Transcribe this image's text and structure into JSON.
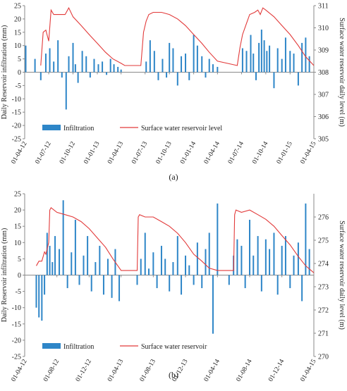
{
  "chart_data": [
    {
      "panel_label": "(a)",
      "type": "bar",
      "ylabel": "Daily Reservoir infiltration (mm)",
      "y2label": "Surface water reservoir daily level (m)",
      "ylim": [
        -25,
        25
      ],
      "y_ticks": [
        "25",
        "20",
        "15",
        "10",
        "5",
        "0",
        "-5",
        "-10",
        "-15",
        "-20",
        "-25"
      ],
      "y2lim": [
        305,
        311
      ],
      "y2_ticks": [
        "311",
        "310",
        "309",
        "308",
        "307",
        "306",
        "305"
      ],
      "x_start": "2012-04-01",
      "x_end": "2015-04-01",
      "x_ticks": [
        {
          "date": "2012-04-01",
          "label": "01-04-12"
        },
        {
          "date": "2012-07-01",
          "label": "01-07-12"
        },
        {
          "date": "2012-10-01",
          "label": "01-10-12"
        },
        {
          "date": "2013-01-01",
          "label": "01-01-13"
        },
        {
          "date": "2013-04-01",
          "label": "01-04-13"
        },
        {
          "date": "2013-07-01",
          "label": "01-07-13"
        },
        {
          "date": "2013-10-01",
          "label": "01-10-13"
        },
        {
          "date": "2014-01-01",
          "label": "01-01-14"
        },
        {
          "date": "2014-04-01",
          "label": "01-04-14"
        },
        {
          "date": "2014-07-01",
          "label": "01-07-14"
        },
        {
          "date": "2014-10-01",
          "label": "01-10-14"
        },
        {
          "date": "2015-01-01",
          "label": "01-01-15"
        },
        {
          "date": "2015-04-01",
          "label": "01-04-15"
        }
      ],
      "legend": [
        "Infiltration",
        "Surface water reservoir level"
      ],
      "legend_position": "bottom-left",
      "grid": false,
      "colors": {
        "bars": "#2e86c8",
        "line": "#e23a3a",
        "axis": "#8a8a8a"
      },
      "series": [
        {
          "type": "bar",
          "axis": "left",
          "x": [
            "2012-04-05",
            "2012-05-10",
            "2012-06-01",
            "2012-06-20",
            "2012-07-05",
            "2012-07-20",
            "2012-08-05",
            "2012-08-20",
            "2012-09-05",
            "2012-09-15",
            "2012-10-01",
            "2012-10-10",
            "2012-10-20",
            "2012-11-05",
            "2012-11-20",
            "2012-12-05",
            "2012-12-20",
            "2013-01-05",
            "2013-01-20",
            "2013-02-05",
            "2013-02-20",
            "2013-03-05",
            "2013-03-20",
            "2013-04-01",
            "2013-07-05",
            "2013-07-20",
            "2013-08-05",
            "2013-08-20",
            "2013-09-05",
            "2013-09-20",
            "2013-10-01",
            "2013-10-15",
            "2013-11-01",
            "2013-11-15",
            "2013-12-01",
            "2013-12-15",
            "2014-01-01",
            "2014-01-15",
            "2014-02-01",
            "2014-02-15",
            "2014-03-01",
            "2014-03-15",
            "2014-04-01",
            "2014-07-05",
            "2014-07-20",
            "2014-08-05",
            "2014-08-15",
            "2014-08-25",
            "2014-09-05",
            "2014-09-15",
            "2014-09-25",
            "2014-10-05",
            "2014-10-15",
            "2014-11-01",
            "2014-11-15",
            "2014-12-01",
            "2014-12-15",
            "2015-01-01",
            "2015-01-15",
            "2015-02-01",
            "2015-02-15",
            "2015-03-01",
            "2015-03-15"
          ],
          "values": [
            10,
            5,
            -3,
            7,
            9,
            4,
            12,
            -2,
            -14,
            6,
            11,
            3,
            -4,
            8,
            6,
            -2,
            5,
            3,
            4,
            -1,
            5,
            3,
            2,
            1,
            4,
            12,
            8,
            -3,
            5,
            -2,
            11,
            9,
            -5,
            6,
            7,
            -3,
            14,
            10,
            6,
            -2,
            5,
            3,
            2,
            9,
            8,
            14,
            7,
            -3,
            11,
            16,
            12,
            8,
            10,
            -6,
            9,
            5,
            13,
            8,
            7,
            -5,
            11,
            13,
            6
          ]
        },
        {
          "type": "line",
          "axis": "right",
          "name": "Surface water reservoir level",
          "x": [
            "2012-06-01",
            "2012-06-10",
            "2012-06-20",
            "2012-07-01",
            "2012-07-10",
            "2012-07-20",
            "2012-08-01",
            "2012-08-15",
            "2012-09-01",
            "2012-09-15",
            "2012-10-01",
            "2012-11-01",
            "2012-12-01",
            "2013-01-01",
            "2013-02-01",
            "2013-03-01",
            "2013-04-01",
            "2013-04-15",
            "2013-06-15",
            "2013-06-25",
            "2013-07-05",
            "2013-07-15",
            "2013-08-01",
            "2013-09-01",
            "2013-10-01",
            "2013-11-01",
            "2013-12-01",
            "2014-01-01",
            "2014-02-01",
            "2014-03-01",
            "2014-04-01",
            "2014-06-15",
            "2014-06-25",
            "2014-07-05",
            "2014-07-20",
            "2014-08-01",
            "2014-08-20",
            "2014-09-01",
            "2014-09-10",
            "2014-09-20",
            "2014-10-01",
            "2014-11-01",
            "2014-12-01",
            "2015-01-01",
            "2015-02-01",
            "2015-03-01",
            "2015-04-01"
          ],
          "values": [
            308.3,
            309.8,
            309.9,
            309.4,
            310.8,
            310.6,
            310.6,
            310.6,
            310.6,
            310.9,
            310.5,
            310.1,
            309.7,
            309.3,
            308.9,
            308.6,
            308.4,
            308.3,
            308.3,
            309.8,
            310.3,
            310.6,
            310.7,
            310.7,
            310.6,
            310.4,
            310.1,
            309.7,
            309.3,
            308.9,
            308.5,
            308.3,
            309.1,
            309.7,
            310.2,
            310.6,
            310.7,
            310.8,
            310.6,
            310.9,
            310.8,
            310.5,
            310.1,
            309.7,
            309.2,
            308.7,
            308.3
          ]
        }
      ]
    },
    {
      "panel_label": "(b)",
      "type": "bar",
      "ylabel": "Daily Reservoir infiltration (mm)",
      "y2label": "Surface water reservoir daily level (m)",
      "ylim": [
        -25,
        25
      ],
      "y_ticks": [
        "25",
        "20",
        "15",
        "10",
        "5",
        "0",
        "-5",
        "-10",
        "-15",
        "-20",
        "-25"
      ],
      "y2lim": [
        270,
        277
      ],
      "y2_ticks": [
        "276",
        "275",
        "274",
        "273",
        "272",
        "271",
        "270"
      ],
      "x_start": "2012-04-01",
      "x_end": "2015-04-01",
      "x_ticks": [
        {
          "date": "2012-04-01",
          "label": "01-04-12"
        },
        {
          "date": "2012-08-01",
          "label": "01-08-12"
        },
        {
          "date": "2012-12-01",
          "label": "01-12-12"
        },
        {
          "date": "2013-04-01",
          "label": "01-04-13"
        },
        {
          "date": "2013-08-01",
          "label": "01-08-13"
        },
        {
          "date": "2013-12-01",
          "label": "01-12-13"
        },
        {
          "date": "2014-04-01",
          "label": "01-04-14"
        },
        {
          "date": "2014-08-01",
          "label": "01-08-14"
        },
        {
          "date": "2014-12-01",
          "label": "01-12-14"
        },
        {
          "date": "2015-04-01",
          "label": "01-04-15"
        }
      ],
      "legend": [
        "Infiltration",
        "Surface water reservoir"
      ],
      "legend_position": "bottom-left",
      "grid": false,
      "colors": {
        "bars": "#2e86c8",
        "line": "#e23a3a",
        "axis": "#8a8a8a"
      },
      "series": [
        {
          "type": "bar",
          "axis": "left",
          "x": [
            "2012-05-15",
            "2012-05-25",
            "2012-06-05",
            "2012-06-15",
            "2012-06-25",
            "2012-07-05",
            "2012-07-15",
            "2012-07-25",
            "2012-08-10",
            "2012-08-25",
            "2012-09-10",
            "2012-09-25",
            "2012-10-10",
            "2012-10-25",
            "2012-11-10",
            "2012-11-25",
            "2012-12-10",
            "2012-12-25",
            "2013-01-10",
            "2013-01-25",
            "2013-02-10",
            "2013-02-25",
            "2013-03-10",
            "2013-03-25",
            "2013-06-01",
            "2013-06-15",
            "2013-07-01",
            "2013-07-15",
            "2013-08-01",
            "2013-08-15",
            "2013-09-01",
            "2013-09-15",
            "2013-10-01",
            "2013-10-15",
            "2013-11-01",
            "2013-11-15",
            "2013-12-01",
            "2013-12-15",
            "2014-01-01",
            "2014-01-15",
            "2014-02-01",
            "2014-02-15",
            "2014-03-01",
            "2014-03-15",
            "2014-04-01",
            "2014-05-15",
            "2014-06-01",
            "2014-06-15",
            "2014-07-01",
            "2014-07-15",
            "2014-08-01",
            "2014-08-15",
            "2014-09-01",
            "2014-09-15",
            "2014-10-01",
            "2014-10-15",
            "2014-11-01",
            "2014-11-15",
            "2014-12-01",
            "2014-12-15",
            "2015-01-01",
            "2015-01-15",
            "2015-02-01",
            "2015-02-15",
            "2015-03-01",
            "2015-03-15"
          ],
          "values": [
            -10,
            -13,
            -14,
            -6,
            13,
            9,
            4,
            12,
            8,
            23,
            -4,
            7,
            17,
            -3,
            6,
            12,
            -5,
            4,
            9,
            -6,
            5,
            -7,
            8,
            -8,
            -3,
            5,
            13,
            2,
            7,
            -4,
            9,
            5,
            -5,
            4,
            12,
            -6,
            6,
            3,
            -3,
            10,
            -4,
            8,
            13,
            -18,
            22,
            -3,
            6,
            11,
            9,
            -4,
            17,
            6,
            12,
            -5,
            11,
            8,
            13,
            -6,
            9,
            12,
            -4,
            6,
            10,
            -8,
            22,
            8
          ]
        },
        {
          "type": "line",
          "axis": "right",
          "name": "Surface water reservoir",
          "x": [
            "2012-05-15",
            "2012-05-25",
            "2012-06-05",
            "2012-06-15",
            "2012-06-20",
            "2012-07-01",
            "2012-07-05",
            "2012-07-10",
            "2012-08-01",
            "2012-09-01",
            "2012-10-01",
            "2012-11-01",
            "2012-12-01",
            "2013-01-01",
            "2013-02-01",
            "2013-03-01",
            "2013-04-01",
            "2013-05-25",
            "2013-06-01",
            "2013-06-05",
            "2013-06-10",
            "2013-07-01",
            "2013-08-01",
            "2013-09-01",
            "2013-10-01",
            "2013-11-01",
            "2013-12-01",
            "2014-01-01",
            "2014-02-01",
            "2014-03-01",
            "2014-04-01",
            "2014-05-25",
            "2014-06-01",
            "2014-06-05",
            "2014-06-10",
            "2014-07-01",
            "2014-08-01",
            "2014-09-01",
            "2014-10-01",
            "2014-11-01",
            "2014-12-01",
            "2015-01-01",
            "2015-02-01",
            "2015-03-01",
            "2015-04-01"
          ],
          "values": [
            273.9,
            274.1,
            274.1,
            274.5,
            274.4,
            274.9,
            276.3,
            276.4,
            276.2,
            276.1,
            276.0,
            275.8,
            275.5,
            275.1,
            274.7,
            274.2,
            273.7,
            273.7,
            273.7,
            276.0,
            276.1,
            276.0,
            276.0,
            275.8,
            275.6,
            275.3,
            274.9,
            274.4,
            274.1,
            273.8,
            273.7,
            273.7,
            273.7,
            276.1,
            276.3,
            276.2,
            276.3,
            276.1,
            275.9,
            275.6,
            275.2,
            274.8,
            274.3,
            273.9,
            273.6
          ]
        }
      ]
    }
  ]
}
